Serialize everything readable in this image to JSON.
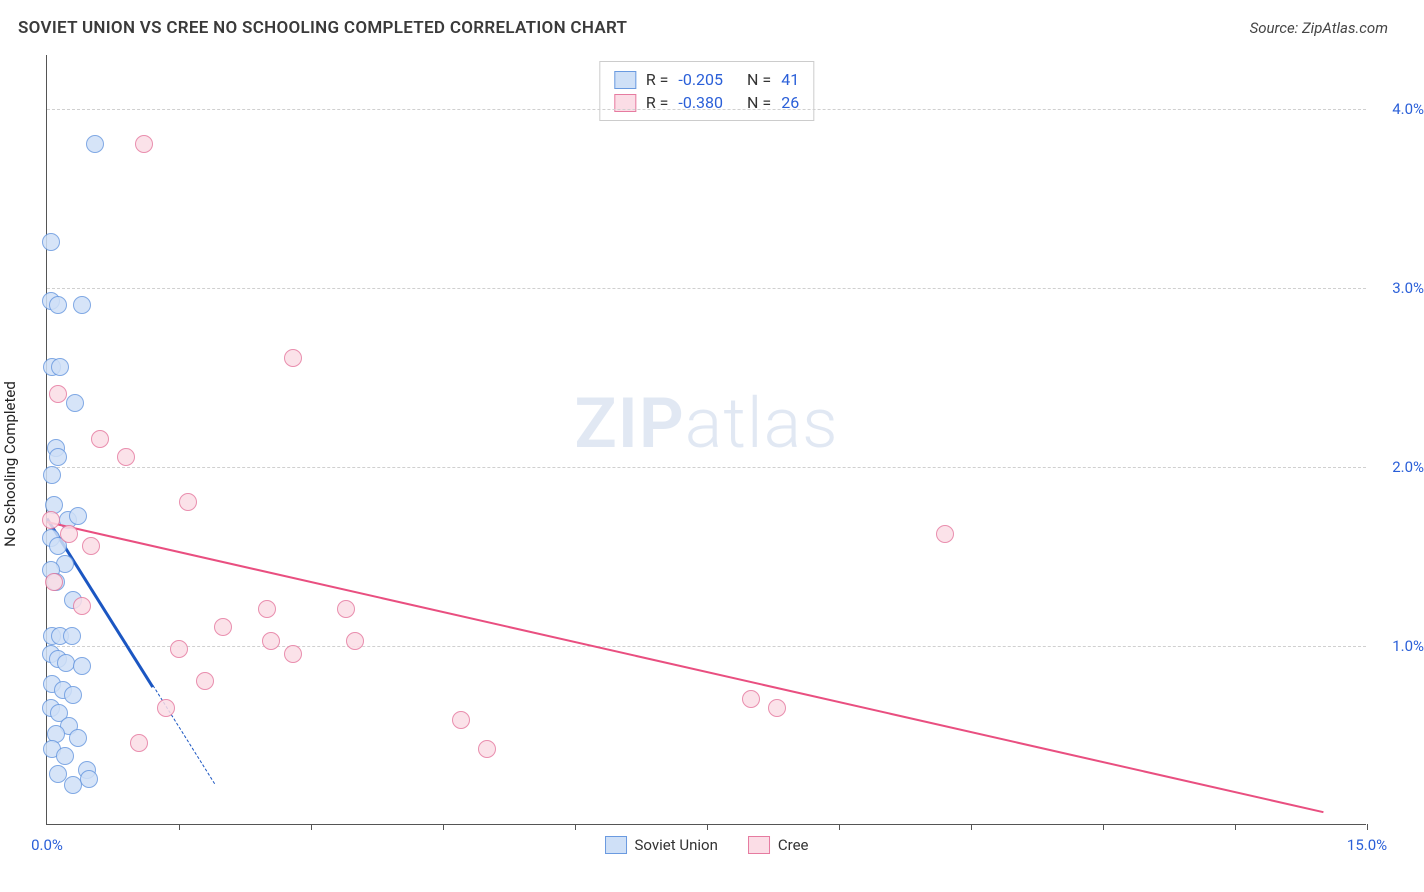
{
  "header": {
    "title": "SOVIET UNION VS CREE NO SCHOOLING COMPLETED CORRELATION CHART",
    "source": "Source: ZipAtlas.com"
  },
  "watermark": {
    "bold": "ZIP",
    "light": "atlas"
  },
  "chart": {
    "type": "scatter",
    "ylabel": "No Schooling Completed",
    "xlim": [
      0,
      15
    ],
    "ylim": [
      0,
      4.3
    ],
    "ytick_vals": [
      1.0,
      2.0,
      3.0,
      4.0
    ],
    "ytick_labels": [
      "1.0%",
      "2.0%",
      "3.0%",
      "4.0%"
    ],
    "xtick_marks": [
      1.5,
      3.0,
      4.5,
      6.0,
      7.5,
      9.0,
      10.5,
      12.0,
      13.5,
      15.0
    ],
    "xtick_labels": [
      {
        "x": 0,
        "label": "0.0%"
      },
      {
        "x": 15,
        "label": "15.0%"
      }
    ],
    "x_axis_label_bottom_offset": -30,
    "grid_color": "#d0d0d0",
    "background_color": "#ffffff",
    "marker_radius": 9,
    "marker_stroke_width": 1.2,
    "series": [
      {
        "name": "Soviet Union",
        "fill": "#cfe0f7",
        "stroke": "#6a9ae0",
        "R": "-0.205",
        "N": "41",
        "trend": {
          "x1": 0,
          "y1": 1.72,
          "x2": 1.2,
          "y2": 0.78,
          "extend_dash_to_x": 1.9,
          "color": "#1b56c2",
          "width": 3
        },
        "points": [
          [
            0.05,
            2.92
          ],
          [
            0.12,
            2.9
          ],
          [
            0.4,
            2.9
          ],
          [
            0.55,
            3.8
          ],
          [
            0.04,
            3.25
          ],
          [
            0.06,
            2.55
          ],
          [
            0.15,
            2.55
          ],
          [
            0.32,
            2.35
          ],
          [
            0.1,
            2.1
          ],
          [
            0.12,
            2.05
          ],
          [
            0.06,
            1.95
          ],
          [
            0.08,
            1.78
          ],
          [
            0.24,
            1.7
          ],
          [
            0.35,
            1.72
          ],
          [
            0.05,
            1.6
          ],
          [
            0.12,
            1.55
          ],
          [
            0.2,
            1.45
          ],
          [
            0.04,
            1.42
          ],
          [
            0.1,
            1.35
          ],
          [
            0.3,
            1.25
          ],
          [
            0.06,
            1.05
          ],
          [
            0.15,
            1.05
          ],
          [
            0.28,
            1.05
          ],
          [
            0.04,
            0.95
          ],
          [
            0.12,
            0.92
          ],
          [
            0.22,
            0.9
          ],
          [
            0.4,
            0.88
          ],
          [
            0.06,
            0.78
          ],
          [
            0.18,
            0.75
          ],
          [
            0.3,
            0.72
          ],
          [
            0.05,
            0.65
          ],
          [
            0.14,
            0.62
          ],
          [
            0.25,
            0.55
          ],
          [
            0.1,
            0.5
          ],
          [
            0.35,
            0.48
          ],
          [
            0.06,
            0.42
          ],
          [
            0.2,
            0.38
          ],
          [
            0.45,
            0.3
          ],
          [
            0.12,
            0.28
          ],
          [
            0.3,
            0.22
          ],
          [
            0.48,
            0.25
          ]
        ]
      },
      {
        "name": "Cree",
        "fill": "#fbdde6",
        "stroke": "#e67ba0",
        "R": "-0.380",
        "N": "26",
        "trend": {
          "x1": 0,
          "y1": 1.7,
          "x2": 14.5,
          "y2": 0.08,
          "color": "#e94f80",
          "width": 2.2
        },
        "points": [
          [
            1.1,
            3.8
          ],
          [
            2.8,
            2.6
          ],
          [
            0.6,
            2.15
          ],
          [
            0.9,
            2.05
          ],
          [
            0.12,
            2.4
          ],
          [
            1.6,
            1.8
          ],
          [
            0.05,
            1.7
          ],
          [
            0.25,
            1.62
          ],
          [
            0.5,
            1.55
          ],
          [
            0.08,
            1.35
          ],
          [
            0.4,
            1.22
          ],
          [
            10.2,
            1.62
          ],
          [
            2.5,
            1.2
          ],
          [
            3.4,
            1.2
          ],
          [
            2.0,
            1.1
          ],
          [
            2.55,
            1.02
          ],
          [
            3.5,
            1.02
          ],
          [
            1.5,
            0.98
          ],
          [
            2.8,
            0.95
          ],
          [
            1.35,
            0.65
          ],
          [
            1.8,
            0.8
          ],
          [
            4.7,
            0.58
          ],
          [
            5.0,
            0.42
          ],
          [
            8.0,
            0.7
          ],
          [
            8.3,
            0.65
          ],
          [
            1.05,
            0.45
          ]
        ]
      }
    ]
  }
}
